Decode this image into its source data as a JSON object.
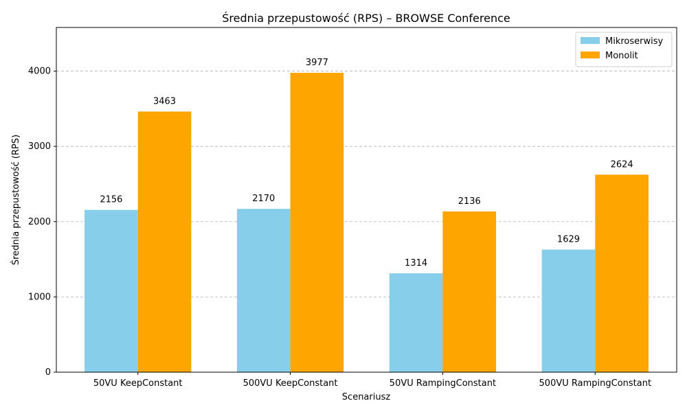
{
  "chart_data": {
    "type": "bar",
    "title": "Średnia przepustowość (RPS) – BROWSE Conference",
    "xlabel": "Scenariusz",
    "ylabel": "Średnia przepustowość (RPS)",
    "categories": [
      "50VU KeepConstant",
      "500VU KeepConstant",
      "50VU RampingConstant",
      "500VU RampingConstant"
    ],
    "series": [
      {
        "name": "Mikroserwisy",
        "color": "#87ceeb",
        "values": [
          2156,
          2170,
          1314,
          1629
        ]
      },
      {
        "name": "Monolit",
        "color": "#ffa500",
        "values": [
          3463,
          3977,
          2136,
          2624
        ]
      }
    ],
    "ylim": [
      0,
      4580
    ],
    "yticks": [
      0,
      1000,
      2000,
      3000,
      4000
    ],
    "grid": "y-dashed",
    "legend": "top-right"
  }
}
